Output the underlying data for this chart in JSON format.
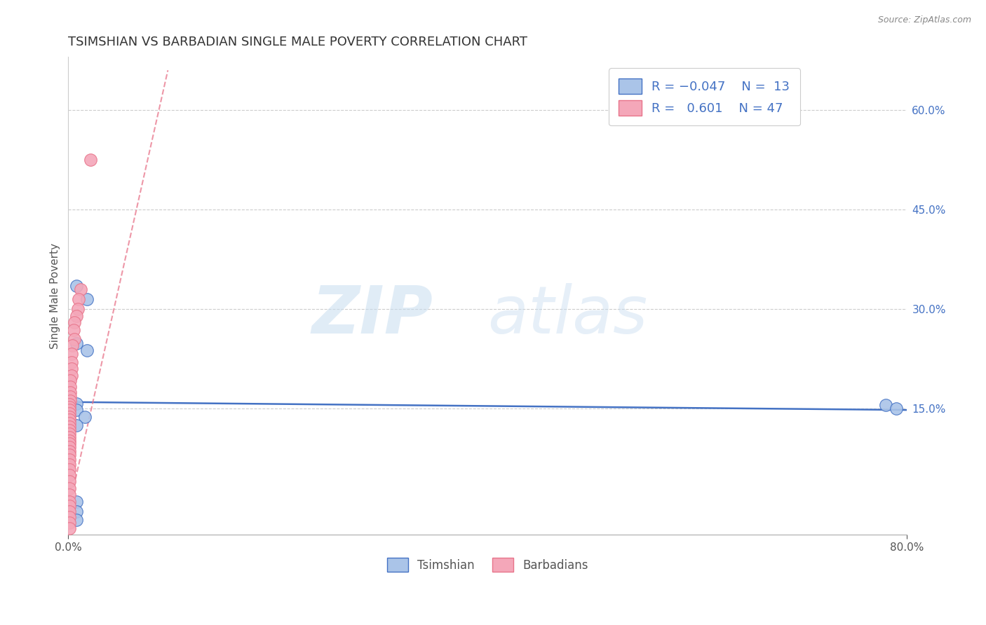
{
  "title": "TSIMSHIAN VS BARBADIAN SINGLE MALE POVERTY CORRELATION CHART",
  "source": "Source: ZipAtlas.com",
  "ylabel": "Single Male Poverty",
  "right_yticks": [
    "60.0%",
    "45.0%",
    "30.0%",
    "15.0%"
  ],
  "right_ytick_vals": [
    0.6,
    0.45,
    0.3,
    0.15
  ],
  "xlim": [
    0.0,
    0.8
  ],
  "ylim": [
    -0.04,
    0.68
  ],
  "tsimshian_scatter": [
    [
      0.008,
      0.335
    ],
    [
      0.018,
      0.315
    ],
    [
      0.008,
      0.248
    ],
    [
      0.018,
      0.238
    ],
    [
      0.008,
      0.158
    ],
    [
      0.008,
      0.148
    ],
    [
      0.016,
      0.138
    ],
    [
      0.008,
      0.125
    ],
    [
      0.78,
      0.155
    ],
    [
      0.79,
      0.15
    ],
    [
      0.008,
      0.01
    ],
    [
      0.008,
      -0.005
    ],
    [
      0.008,
      -0.018
    ]
  ],
  "barbadian_scatter": [
    [
      0.021,
      0.525
    ],
    [
      0.012,
      0.33
    ],
    [
      0.01,
      0.315
    ],
    [
      0.009,
      0.3
    ],
    [
      0.008,
      0.29
    ],
    [
      0.006,
      0.28
    ],
    [
      0.005,
      0.268
    ],
    [
      0.006,
      0.255
    ],
    [
      0.004,
      0.245
    ],
    [
      0.003,
      0.233
    ],
    [
      0.003,
      0.22
    ],
    [
      0.003,
      0.21
    ],
    [
      0.003,
      0.2
    ],
    [
      0.002,
      0.192
    ],
    [
      0.002,
      0.183
    ],
    [
      0.002,
      0.175
    ],
    [
      0.002,
      0.168
    ],
    [
      0.002,
      0.162
    ],
    [
      0.001,
      0.157
    ],
    [
      0.001,
      0.152
    ],
    [
      0.001,
      0.148
    ],
    [
      0.001,
      0.143
    ],
    [
      0.001,
      0.138
    ],
    [
      0.001,
      0.133
    ],
    [
      0.001,
      0.128
    ],
    [
      0.001,
      0.123
    ],
    [
      0.001,
      0.118
    ],
    [
      0.001,
      0.112
    ],
    [
      0.001,
      0.107
    ],
    [
      0.001,
      0.102
    ],
    [
      0.001,
      0.097
    ],
    [
      0.001,
      0.092
    ],
    [
      0.001,
      0.086
    ],
    [
      0.001,
      0.08
    ],
    [
      0.001,
      0.073
    ],
    [
      0.001,
      0.066
    ],
    [
      0.001,
      0.058
    ],
    [
      0.001,
      0.05
    ],
    [
      0.001,
      0.04
    ],
    [
      0.001,
      0.03
    ],
    [
      0.001,
      0.02
    ],
    [
      0.001,
      0.01
    ],
    [
      0.001,
      0.003
    ],
    [
      0.001,
      -0.005
    ],
    [
      0.001,
      -0.013
    ],
    [
      0.001,
      -0.022
    ],
    [
      0.001,
      -0.03
    ]
  ],
  "tsimshian_color": "#aac4e8",
  "barbadian_color": "#f4a7b9",
  "tsimshian_line_color": "#4472c4",
  "barbadian_line_color": "#e8748a",
  "grid_color": "#cccccc",
  "background_color": "#ffffff",
  "legend_label_color": "#4472c4"
}
